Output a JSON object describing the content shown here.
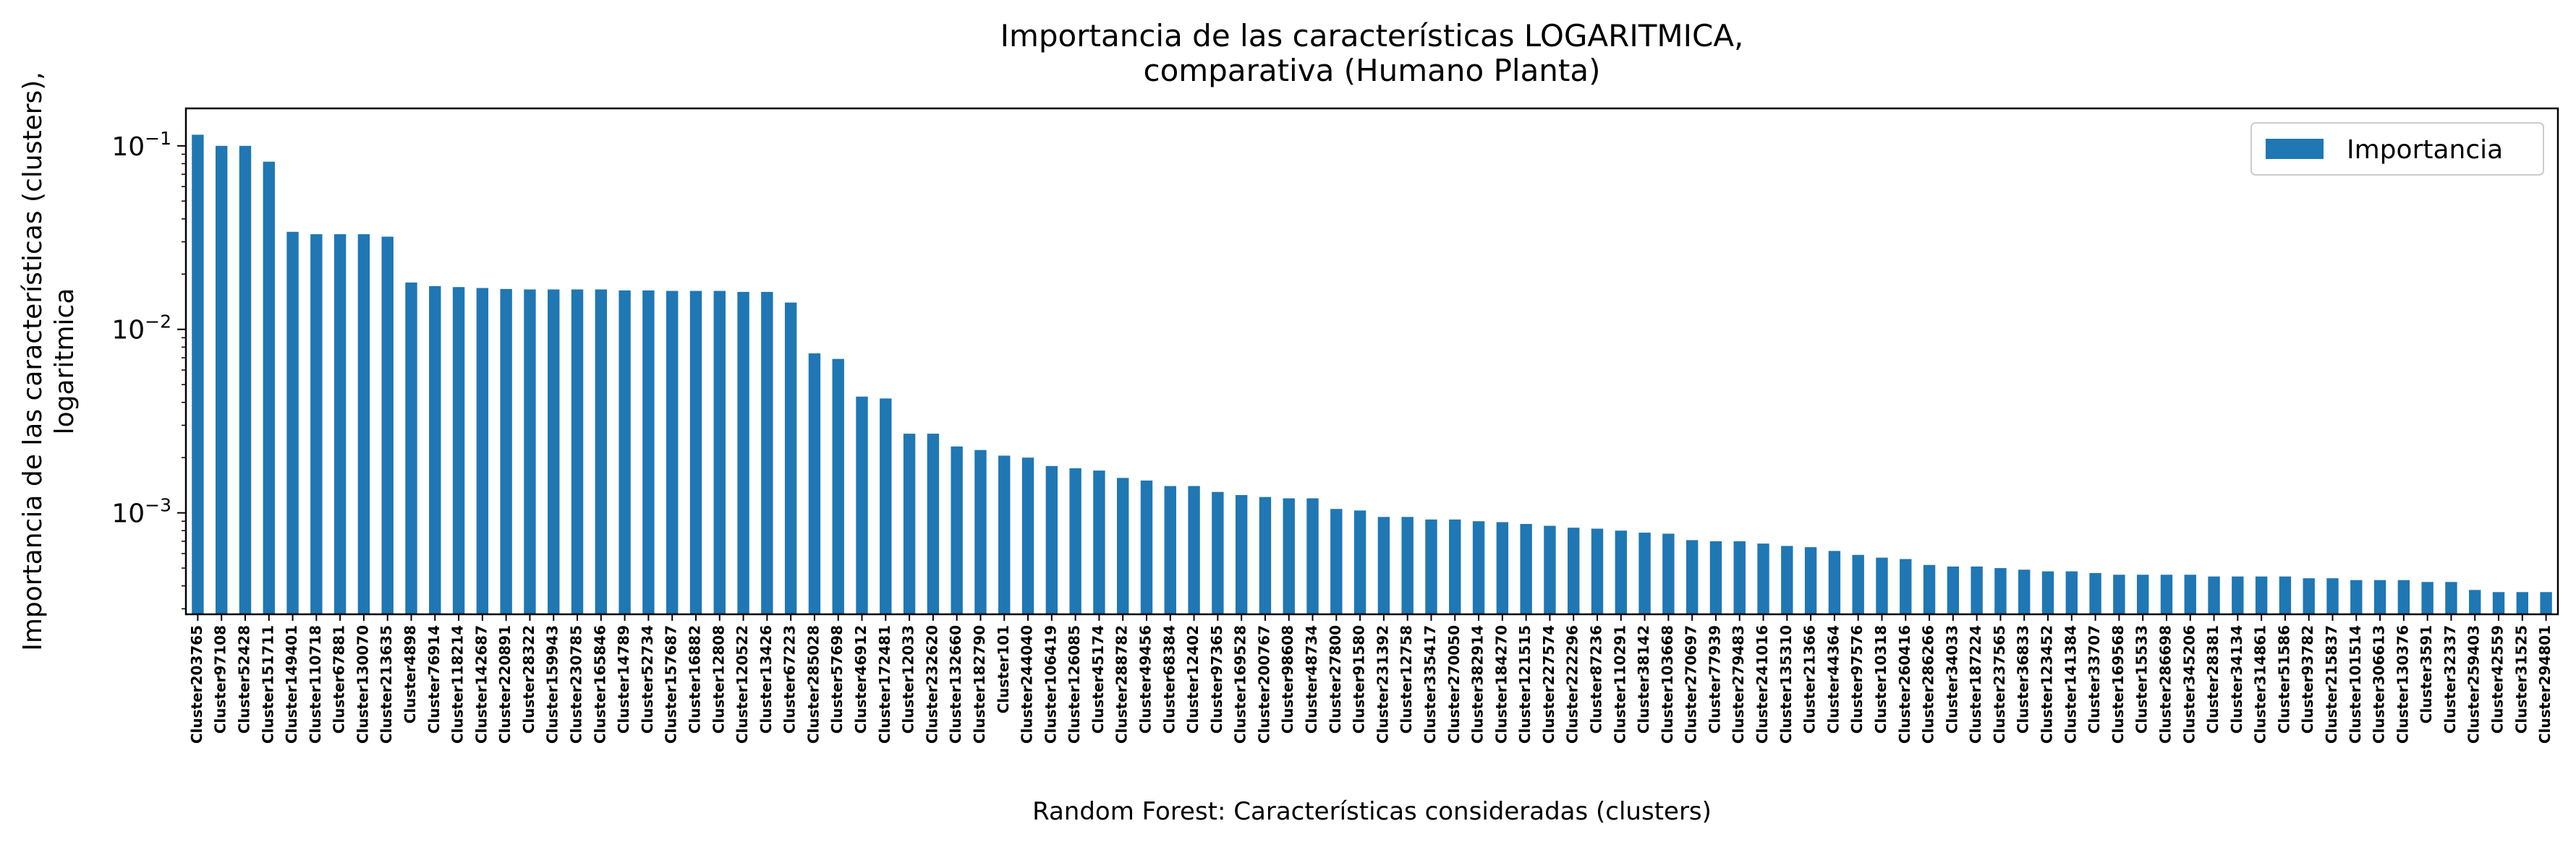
{
  "chart_data": {
    "type": "bar",
    "title": [
      "Importancia de las características LOGARITMICA,",
      "comparativa (Humano Planta)"
    ],
    "xlabel": "Random Forest: Características consideradas (clusters)",
    "ylabel": [
      "Importancia de las características (clusters),",
      "logaritmica"
    ],
    "yscale": "log",
    "ylim": [
      0.00028,
      0.16
    ],
    "yticks": [
      {
        "value": 0.001,
        "base": "10",
        "exp": "−3"
      },
      {
        "value": 0.01,
        "base": "10",
        "exp": "−2"
      },
      {
        "value": 0.1,
        "base": "10",
        "exp": "−1"
      }
    ],
    "legend": {
      "label": "Importancia",
      "placement": "top-right"
    },
    "bar_color": "#1f77b4",
    "grid": false,
    "categories": [
      "Cluster203765",
      "Cluster97108",
      "Cluster52428",
      "Cluster151711",
      "Cluster149401",
      "Cluster110718",
      "Cluster67881",
      "Cluster130070",
      "Cluster213635",
      "Cluster4898",
      "Cluster76914",
      "Cluster118214",
      "Cluster142687",
      "Cluster220891",
      "Cluster28322",
      "Cluster159943",
      "Cluster230785",
      "Cluster165846",
      "Cluster14789",
      "Cluster52734",
      "Cluster157687",
      "Cluster16882",
      "Cluster12808",
      "Cluster120522",
      "Cluster13426",
      "Cluster67223",
      "Cluster285028",
      "Cluster57698",
      "Cluster46912",
      "Cluster172481",
      "Cluster12033",
      "Cluster232620",
      "Cluster132660",
      "Cluster182790",
      "Cluster101",
      "Cluster244040",
      "Cluster106419",
      "Cluster126085",
      "Cluster45174",
      "Cluster288782",
      "Cluster49456",
      "Cluster68384",
      "Cluster12402",
      "Cluster97365",
      "Cluster169528",
      "Cluster200767",
      "Cluster98608",
      "Cluster48734",
      "Cluster27800",
      "Cluster91580",
      "Cluster231392",
      "Cluster12758",
      "Cluster335417",
      "Cluster270050",
      "Cluster382914",
      "Cluster184270",
      "Cluster121515",
      "Cluster227574",
      "Cluster222296",
      "Cluster87236",
      "Cluster110291",
      "Cluster38142",
      "Cluster103668",
      "Cluster270697",
      "Cluster77939",
      "Cluster279483",
      "Cluster241016",
      "Cluster135310",
      "Cluster21366",
      "Cluster44364",
      "Cluster97576",
      "Cluster10318",
      "Cluster260416",
      "Cluster286266",
      "Cluster34033",
      "Cluster187224",
      "Cluster237565",
      "Cluster36833",
      "Cluster123452",
      "Cluster141384",
      "Cluster33707",
      "Cluster169568",
      "Cluster15533",
      "Cluster286698",
      "Cluster345206",
      "Cluster28381",
      "Cluster34134",
      "Cluster314861",
      "Cluster51586",
      "Cluster93782",
      "Cluster215837",
      "Cluster101514",
      "Cluster306613",
      "Cluster130376",
      "Cluster3591",
      "Cluster32337",
      "Cluster259403",
      "Cluster42559",
      "Cluster31525",
      "Cluster294801"
    ],
    "values": [
      0.115,
      0.1,
      0.1,
      0.082,
      0.034,
      0.033,
      0.033,
      0.033,
      0.032,
      0.018,
      0.0172,
      0.017,
      0.0168,
      0.0166,
      0.0165,
      0.0165,
      0.0165,
      0.0165,
      0.0163,
      0.0163,
      0.0162,
      0.0162,
      0.0162,
      0.016,
      0.016,
      0.014,
      0.0074,
      0.0069,
      0.0043,
      0.0042,
      0.0027,
      0.0027,
      0.0023,
      0.0022,
      0.00205,
      0.002,
      0.0018,
      0.00175,
      0.0017,
      0.00155,
      0.0015,
      0.0014,
      0.0014,
      0.0013,
      0.00125,
      0.00122,
      0.0012,
      0.0012,
      0.00105,
      0.00103,
      0.00095,
      0.00095,
      0.00092,
      0.00092,
      0.0009,
      0.00089,
      0.00087,
      0.00085,
      0.00083,
      0.00082,
      0.0008,
      0.00078,
      0.00077,
      0.00071,
      0.0007,
      0.0007,
      0.00068,
      0.00066,
      0.00065,
      0.00062,
      0.00059,
      0.00057,
      0.00056,
      0.00052,
      0.00051,
      0.00051,
      0.0005,
      0.00049,
      0.00048,
      0.00048,
      0.00047,
      0.00046,
      0.00046,
      0.00046,
      0.00046,
      0.00045,
      0.00045,
      0.00045,
      0.00045,
      0.00044,
      0.00044,
      0.00043,
      0.00043,
      0.00043,
      0.00042,
      0.00042,
      0.00038,
      0.00037,
      0.00037,
      0.00037
    ]
  }
}
